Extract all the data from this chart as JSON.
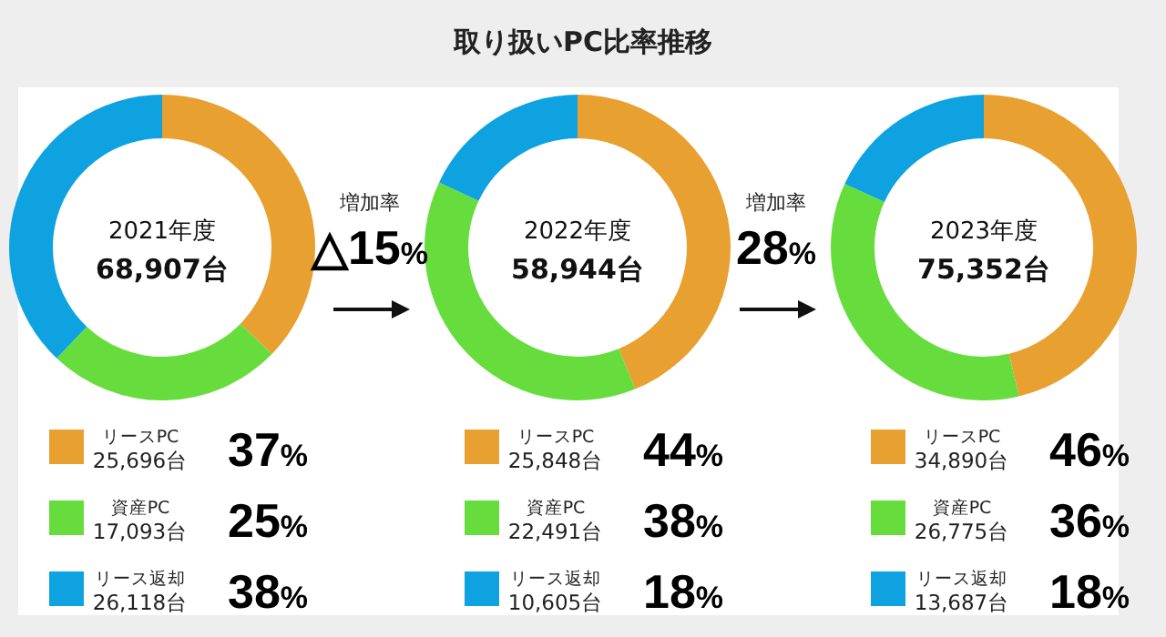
{
  "chart_data": [
    {
      "type": "other",
      "title": "取り扱いPC比率推移"
    },
    {
      "type": "donut",
      "subtitle": "2021年度",
      "categories": [
        "リースPC",
        "資産PC",
        "リース返却"
      ],
      "values": [
        25696,
        17093,
        26118
      ],
      "colors": [
        "#e8a030",
        "#66dd3c",
        "#0ea3e0"
      ],
      "value_labels": [
        "25,696台",
        "17,093台",
        "26,118台"
      ],
      "legend": "bottom",
      "annotations": [
        "68,907台",
        {
          "text": "37%",
          "x": "リースPC"
        },
        {
          "text": "25%",
          "x": "資産PC"
        },
        {
          "text": "38%",
          "x": "リース返却"
        }
      ]
    },
    {
      "type": "donut",
      "subtitle": "2022年度",
      "categories": [
        "リースPC",
        "資産PC",
        "リース返却"
      ],
      "values": [
        25848,
        22491,
        10605
      ],
      "colors": [
        "#e8a030",
        "#66dd3c",
        "#0ea3e0"
      ],
      "value_labels": [
        "25,848台",
        "22,491台",
        "10,605台"
      ],
      "legend": "bottom",
      "annotations": [
        "58,944台",
        {
          "text": "44%",
          "x": "リースPC"
        },
        {
          "text": "38%",
          "x": "資産PC"
        },
        {
          "text": "18%",
          "x": "リース返却"
        },
        "増加率",
        "△15%"
      ]
    },
    {
      "type": "donut",
      "subtitle": "2023年度",
      "categories": [
        "リースPC",
        "資産PC",
        "リース返却"
      ],
      "values": [
        34890,
        26775,
        13687
      ],
      "colors": [
        "#e8a030",
        "#66dd3c",
        "#0ea3e0"
      ],
      "value_labels": [
        "34,890台",
        "26,775台",
        "13,687台"
      ],
      "legend": "bottom",
      "annotations": [
        "75,352台",
        {
          "text": "46%",
          "x": "リースPC"
        },
        {
          "text": "36%",
          "x": "資産PC"
        },
        {
          "text": "18%",
          "x": "リース返却"
        },
        "増加率",
        "28%"
      ]
    }
  ]
}
